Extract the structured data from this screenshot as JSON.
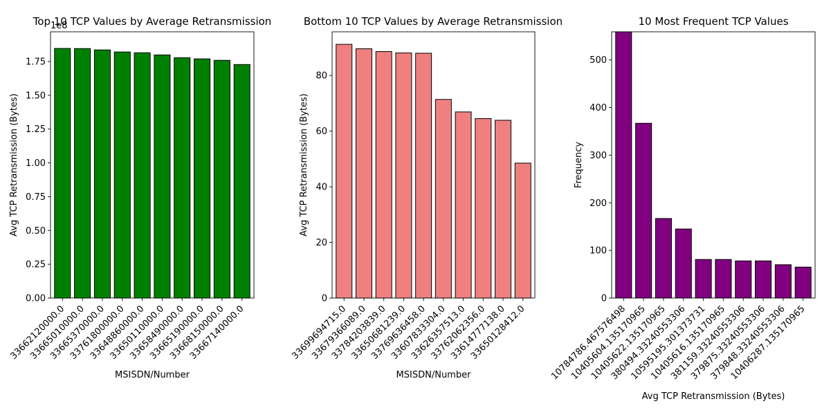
{
  "chart_data": [
    {
      "type": "bar",
      "title": "Top 10 TCP Values by Average Retransmission",
      "xlabel": "MSISDN/Number",
      "ylabel": "Avg TCP Retransmission (Bytes)",
      "offset_text": "1e8",
      "scale": 100000000,
      "categories": [
        "33662120000.0",
        "33665010000.0",
        "33665370000.0",
        "33761800000.0",
        "33648860000.0",
        "33650110000.0",
        "33658490000.0",
        "33665190000.0",
        "33668150000.0",
        "33667140000.0"
      ],
      "values": [
        184700000,
        184600000,
        183600000,
        182100000,
        181500000,
        179900000,
        177800000,
        177000000,
        175900000,
        172800000
      ],
      "ylim": [
        0,
        197000000
      ],
      "yticks": [
        0,
        25000000,
        50000000,
        75000000,
        100000000,
        125000000,
        150000000,
        175000000
      ],
      "ytick_labels": [
        "0.00",
        "0.25",
        "0.50",
        "0.75",
        "1.00",
        "1.25",
        "1.50",
        "1.75"
      ],
      "color": "#008000",
      "edge_color": "#000000"
    },
    {
      "type": "bar",
      "title": "Bottom 10 TCP Values by Average Retransmission",
      "xlabel": "MSISDN/Number",
      "ylabel": "Avg TCP Retransmission (Bytes)",
      "categories": [
        "33699694715.0",
        "33679366089.0",
        "33784203839.0",
        "33650681239.0",
        "33769636458.0",
        "33607833304.0",
        "33626357513.0",
        "33762062356.0",
        "33614777138.0",
        "33650128412.0"
      ],
      "values": [
        91.2,
        89.6,
        88.6,
        88.1,
        88.0,
        71.4,
        66.9,
        64.5,
        63.9,
        48.5
      ],
      "ylim": [
        0,
        95.7
      ],
      "yticks": [
        0,
        20,
        40,
        60,
        80
      ],
      "ytick_labels": [
        "0",
        "20",
        "40",
        "60",
        "80"
      ],
      "color": "#F08080",
      "edge_color": "#000000"
    },
    {
      "type": "bar",
      "title": "10 Most Frequent TCP Values",
      "xlabel": "Avg TCP Retransmission (Bytes)",
      "ylabel": "Frequency",
      "categories": [
        "10784786.467576498",
        "10405604.135170965",
        "10405622.135170965",
        "380494.33240553306",
        "10595195.301373731",
        "10405616.135170965",
        "381159.33240553306",
        "379875.33240553306",
        "379848.33240553306",
        "10406287.135170965"
      ],
      "values": [
        559,
        367,
        167,
        145,
        81,
        81,
        78,
        78,
        70,
        65
      ],
      "ylim": [
        0,
        559
      ],
      "yticks": [
        0,
        100,
        200,
        300,
        400,
        500
      ],
      "ytick_labels": [
        "0",
        "100",
        "200",
        "300",
        "400",
        "500"
      ],
      "color": "#800080",
      "edge_color": "#000000"
    }
  ]
}
